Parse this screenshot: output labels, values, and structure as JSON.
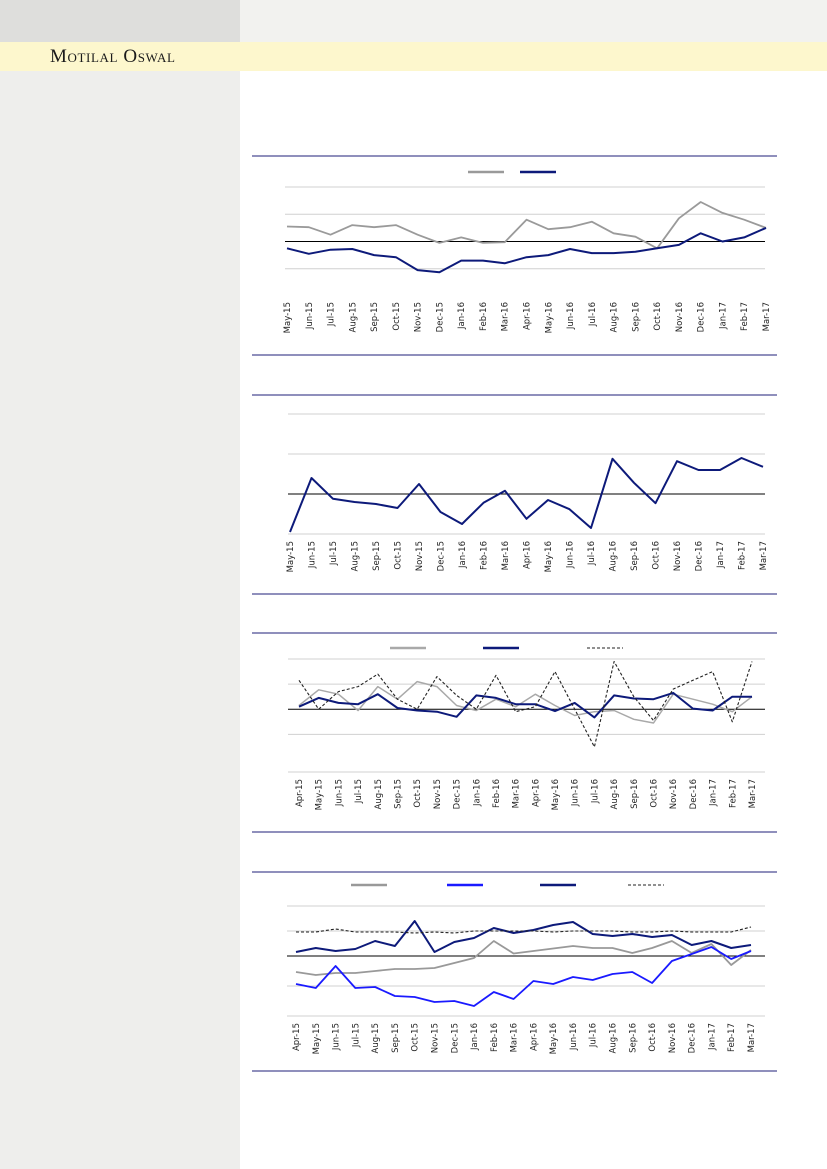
{
  "header": {
    "brand": "Motilal Oswal",
    "colors": {
      "brand_bar": "#fdf7cd",
      "sidebar": "#eeeeec",
      "rule": "#1f1f7a"
    }
  },
  "chart_data": [
    {
      "type": "line",
      "title": "",
      "categories": [
        "May-15",
        "Jun-15",
        "Jul-15",
        "Aug-15",
        "Sep-15",
        "Oct-15",
        "Nov-15",
        "Dec-15",
        "Jan-16",
        "Feb-16",
        "Mar-16",
        "Apr-16",
        "May-16",
        "Jun-16",
        "Jul-16",
        "Aug-16",
        "Sep-16",
        "Oct-16",
        "Nov-16",
        "Dec-16",
        "Jan-17",
        "Feb-17",
        "Mar-17"
      ],
      "series": [
        {
          "name": "",
          "color": "#9a9a9a",
          "dash": "",
          "width": 1.8,
          "values": [
            1.1,
            1.05,
            0.5,
            1.2,
            1.05,
            1.2,
            0.5,
            -0.1,
            0.3,
            -0.1,
            -0.05,
            1.6,
            0.9,
            1.05,
            1.45,
            0.6,
            0.35,
            -0.5,
            1.7,
            2.9,
            2.1,
            1.6,
            1.0
          ]
        },
        {
          "name": "",
          "color": "#0d1a7a",
          "dash": "",
          "width": 2,
          "values": [
            -0.5,
            -0.9,
            -0.6,
            -0.55,
            -1.0,
            -1.15,
            -2.1,
            -2.25,
            -1.4,
            -1.4,
            -1.6,
            -1.15,
            -1.0,
            -0.55,
            -0.85,
            -0.85,
            -0.75,
            -0.5,
            -0.25,
            0.6,
            0.0,
            0.3,
            1.0
          ]
        }
      ],
      "ylim": [
        -4,
        4
      ],
      "gridlines": [
        -2,
        2,
        4
      ],
      "baseline": 0,
      "legend": "top-center"
    },
    {
      "type": "line",
      "title": "",
      "categories": [
        "May-15",
        "Jun-15",
        "Jul-15",
        "Aug-15",
        "Sep-15",
        "Oct-15",
        "Nov-15",
        "Dec-15",
        "Jan-16",
        "Feb-16",
        "Mar-16",
        "Apr-16",
        "May-16",
        "Jun-16",
        "Jul-16",
        "Aug-16",
        "Sep-16",
        "Oct-16",
        "Nov-16",
        "Dec-16",
        "Jan-17",
        "Feb-17",
        "Mar-17"
      ],
      "series": [
        {
          "name": "",
          "color": "#0d1a7a",
          "dash": "",
          "width": 2,
          "values": [
            -0.95,
            0.4,
            -0.12,
            -0.2,
            -0.25,
            -0.35,
            0.25,
            -0.45,
            -0.75,
            -0.22,
            0.08,
            -0.62,
            -0.15,
            -0.38,
            -0.85,
            0.88,
            0.28,
            -0.23,
            0.82,
            0.6,
            0.6,
            0.9,
            0.68
          ]
        }
      ],
      "ylim": [
        -1,
        2
      ],
      "gridlines": [
        -1,
        1,
        2
      ],
      "baseline": 0,
      "legend": "none"
    },
    {
      "type": "line",
      "title": "",
      "categories": [
        "Apr-15",
        "May-15",
        "Jun-15",
        "Jul-15",
        "Aug-15",
        "Sep-15",
        "Oct-15",
        "Nov-15",
        "Dec-15",
        "Jan-16",
        "Feb-16",
        "Mar-16",
        "Apr-16",
        "May-16",
        "Jun-16",
        "Jul-16",
        "Aug-16",
        "Sep-16",
        "Oct-16",
        "Nov-16",
        "Dec-16",
        "Jan-17",
        "Feb-17",
        "Mar-17"
      ],
      "series": [
        {
          "name": "",
          "color": "#a9a9a9",
          "dash": "",
          "width": 1.5,
          "values": [
            0.3,
            1.55,
            1.2,
            -0.1,
            1.8,
            0.8,
            2.2,
            1.8,
            0.3,
            -0.1,
            0.8,
            0.2,
            1.2,
            0.3,
            -0.5,
            -0.2,
            -0.1,
            -0.8,
            -1.1,
            1.2,
            0.8,
            0.4,
            -0.2,
            1.0
          ]
        },
        {
          "name": "",
          "color": "#0d1a7a",
          "dash": "",
          "width": 2,
          "values": [
            0.2,
            0.9,
            0.5,
            0.4,
            1.2,
            0.1,
            -0.1,
            -0.2,
            -0.6,
            1.1,
            0.9,
            0.4,
            0.4,
            -0.15,
            0.5,
            -0.65,
            1.1,
            0.85,
            0.8,
            1.3,
            0.05,
            -0.1,
            1.0,
            1.0
          ]
        },
        {
          "name": "",
          "color": "#222222",
          "dash": "3,2",
          "width": 1.1,
          "values": [
            2.3,
            0.0,
            1.4,
            1.8,
            2.8,
            0.8,
            0.0,
            2.6,
            1.1,
            0.0,
            2.7,
            -0.2,
            0.2,
            3.0,
            0.0,
            -3.0,
            3.8,
            1.0,
            -0.9,
            1.6,
            2.3,
            3.0,
            -1.0,
            3.8
          ]
        }
      ],
      "ylim": [
        -5,
        4
      ],
      "gridlines": [
        -5,
        -2,
        2,
        4
      ],
      "baseline": 0,
      "legend": "top-center"
    },
    {
      "type": "line",
      "title": "",
      "categories": [
        "Apr-15",
        "May-15",
        "Jun-15",
        "Jul-15",
        "Aug-15",
        "Sep-15",
        "Oct-15",
        "Nov-15",
        "Dec-15",
        "Jan-16",
        "Feb-16",
        "Mar-16",
        "Apr-16",
        "May-16",
        "Jun-16",
        "Jul-16",
        "Aug-16",
        "Sep-16",
        "Oct-16",
        "Nov-16",
        "Dec-16",
        "Jan-17",
        "Feb-17",
        "Mar-17"
      ],
      "series": [
        {
          "name": "",
          "color": "#999999",
          "dash": "",
          "width": 1.8,
          "values": [
            -1.6,
            -1.9,
            -1.7,
            -1.7,
            -1.5,
            -1.3,
            -1.3,
            -1.2,
            -0.7,
            -0.2,
            1.5,
            0.25,
            0.5,
            0.75,
            1.0,
            0.8,
            0.8,
            0.3,
            0.8,
            1.5,
            0.3,
            1.2,
            -0.9,
            0.6
          ]
        },
        {
          "name": "",
          "color": "#1a1aff",
          "dash": "",
          "width": 1.8,
          "values": [
            -2.8,
            -3.2,
            -1.0,
            -3.2,
            -3.1,
            -4.0,
            -4.1,
            -4.6,
            -4.5,
            -5.0,
            -3.6,
            -4.3,
            -2.5,
            -2.8,
            -2.1,
            -2.4,
            -1.8,
            -1.6,
            -2.7,
            -0.5,
            0.2,
            0.9,
            -0.3,
            0.5
          ]
        },
        {
          "name": "",
          "color": "#0d1a7a",
          "dash": "",
          "width": 2,
          "values": [
            0.4,
            0.8,
            0.5,
            0.7,
            1.5,
            1.0,
            3.5,
            0.4,
            1.4,
            1.8,
            2.8,
            2.3,
            2.6,
            3.1,
            3.4,
            2.2,
            2.0,
            2.2,
            1.9,
            2.1,
            1.1,
            1.5,
            0.8,
            1.1
          ]
        },
        {
          "name": "",
          "color": "#222222",
          "dash": "3,2",
          "width": 1.1,
          "values": [
            2.4,
            2.4,
            2.7,
            2.4,
            2.4,
            2.4,
            2.3,
            2.4,
            2.3,
            2.5,
            2.5,
            2.5,
            2.5,
            2.4,
            2.5,
            2.5,
            2.5,
            2.4,
            2.4,
            2.5,
            2.4,
            2.4,
            2.4,
            2.9
          ]
        }
      ],
      "ylim": [
        -6,
        5
      ],
      "gridlines": [
        -6,
        -3,
        2.5,
        5
      ],
      "baseline": 0,
      "legend": "top-center"
    }
  ]
}
